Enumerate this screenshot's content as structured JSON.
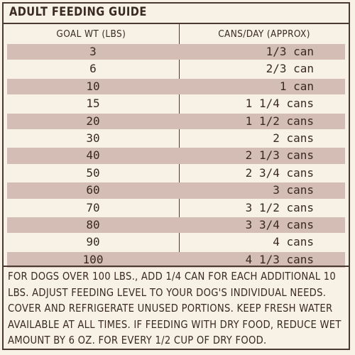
{
  "title": "ADULT FEEDING GUIDE",
  "headers": {
    "goal_wt": "GOAL WT (LBS)",
    "cans_day": "CANS/DAY (APPROX)"
  },
  "rows": [
    {
      "weight": "3",
      "cans": "1/3 can"
    },
    {
      "weight": "6",
      "cans": "2/3 can"
    },
    {
      "weight": "10",
      "cans": "1 can"
    },
    {
      "weight": "15",
      "cans": "1 1/4 cans"
    },
    {
      "weight": "20",
      "cans": "1 1/2 cans"
    },
    {
      "weight": "30",
      "cans": "2 cans"
    },
    {
      "weight": "40",
      "cans": "2 1/3 cans"
    },
    {
      "weight": "50",
      "cans": "2 3/4 cans"
    },
    {
      "weight": "60",
      "cans": "3 cans"
    },
    {
      "weight": "70",
      "cans": "3 1/2 cans"
    },
    {
      "weight": "80",
      "cans": "3 3/4 cans"
    },
    {
      "weight": "90",
      "cans": "4 cans"
    },
    {
      "weight": "100",
      "cans": "4 1/3 cans"
    }
  ],
  "footnote": "FOR DOGS OVER 100 LBS., ADD 1/4 CAN FOR EACH ADDITIONAL 10 LBS. ADJUST FEEDING LEVEL TO YOUR DOG'S INDIVIDUAL NEEDS. COVER AND REFRIGERATE UNUSED PORTIONS. KEEP FRESH WATER AVAILABLE AT ALL TIMES. IF FEEDING WITH DRY FOOD, REDUCE WET AMOUNT BY 6 OZ. FOR EVERY 1/2 CUP OF DRY FOOD.",
  "colors": {
    "background": "#f7f1e6",
    "band": "#d3bdb5",
    "ink": "#3a2a22"
  }
}
